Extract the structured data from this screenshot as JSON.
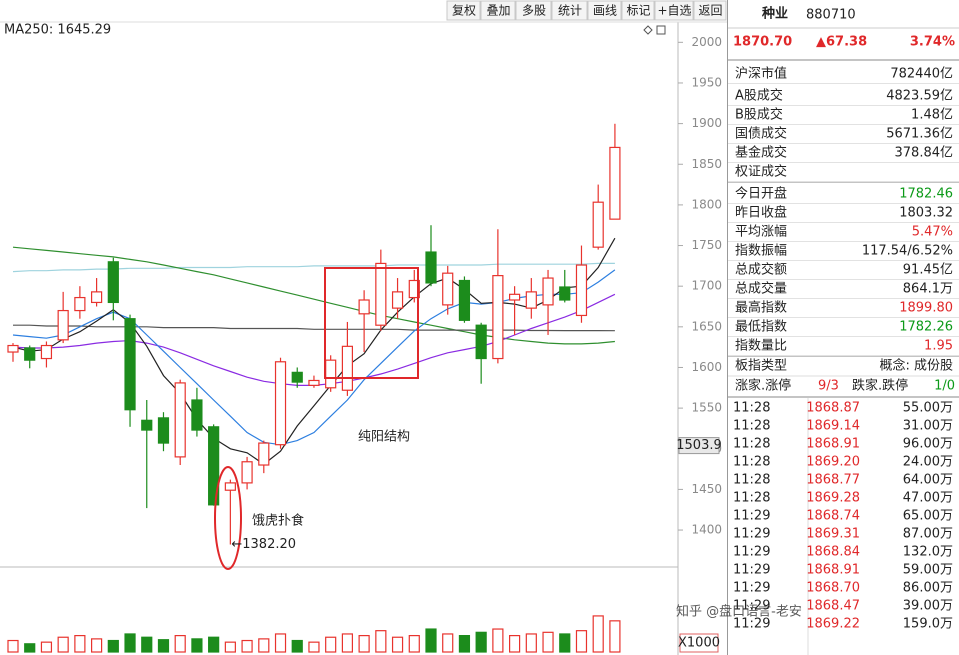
{
  "toolbar": [
    "复权",
    "叠加",
    "多股",
    "统计",
    "画线",
    "标记",
    "+自选",
    "返回"
  ],
  "chart_data": {
    "type": "candlestick",
    "legend": "MA250: 1645.29",
    "categories": [
      null,
      null,
      null,
      null,
      null,
      null,
      null,
      null,
      null,
      null,
      null,
      null,
      null,
      null,
      null,
      null,
      null,
      null,
      null,
      null,
      null,
      null,
      null,
      null,
      null,
      null,
      null,
      null,
      null,
      null,
      null,
      null,
      null,
      null,
      null,
      null,
      null
    ],
    "open": [
      1619,
      1624,
      1611,
      1634,
      1670,
      1680,
      1730,
      1660,
      1535,
      1538,
      1490,
      1560,
      1527,
      1449,
      1458,
      1480,
      1505,
      1594,
      1578,
      1575,
      1572,
      1666,
      1652,
      1673,
      1686,
      1742,
      1677,
      1707,
      1652,
      1611,
      1683,
      1673,
      1677,
      1699,
      1664,
      1748,
      1782.46
    ],
    "high": [
      1630,
      1627,
      1632,
      1693,
      1700,
      1710,
      1735,
      1665,
      1560,
      1545,
      1585,
      1575,
      1530,
      1462,
      1490,
      1510,
      1612,
      1600,
      1590,
      1615,
      1656,
      1695,
      1745,
      1710,
      1720,
      1775,
      1725,
      1712,
      1655,
      1770,
      1700,
      1710,
      1720,
      1720,
      1750,
      1825,
      1899.8
    ],
    "low": [
      1607,
      1599,
      1600,
      1630,
      1660,
      1675,
      1658,
      1527,
      1427,
      1497,
      1480,
      1515,
      1430,
      1382.2,
      1450,
      1470,
      1500,
      1575,
      1575,
      1570,
      1565,
      1619,
      1645,
      1660,
      1680,
      1700,
      1665,
      1655,
      1580,
      1605,
      1640,
      1660,
      1640,
      1680,
      1655,
      1745,
      1782.26
    ],
    "close": [
      1627,
      1609,
      1627,
      1670,
      1686,
      1693,
      1680,
      1548,
      1523,
      1507,
      1581,
      1523,
      1431,
      1458,
      1484,
      1507,
      1607,
      1582,
      1584,
      1609,
      1626,
      1683,
      1728,
      1693,
      1707,
      1704,
      1716,
      1658,
      1611,
      1713,
      1690,
      1693,
      1710,
      1683,
      1726,
      1803.32,
      1870.7
    ],
    "colors": {
      "up": "#e8332d",
      "down": "#1c8c1c"
    },
    "series": [
      {
        "color": "#9fd3de",
        "values": [
          1718,
          1719,
          1719,
          1720,
          1720,
          1721,
          1721,
          1722,
          1722,
          1722,
          1723,
          1723,
          1723,
          1723,
          1724,
          1724,
          1724,
          1724,
          1725,
          1725,
          1725,
          1725,
          1725,
          1726,
          1726,
          1726,
          1726,
          1726,
          1726,
          1727,
          1727,
          1727,
          1727,
          1727,
          1727,
          1728,
          1728
        ]
      },
      {
        "color": "#2f8f2f",
        "values": [
          1748,
          1746,
          1744,
          1742,
          1740,
          1738,
          1736,
          1733,
          1730,
          1726,
          1722,
          1718,
          1714,
          1709,
          1704,
          1699,
          1694,
          1689,
          1684,
          1679,
          1674,
          1669,
          1664,
          1660,
          1656,
          1652,
          1648,
          1644,
          1640,
          1637,
          1634,
          1632,
          1630,
          1629,
          1629,
          1630,
          1632
        ]
      },
      {
        "color": "#555555",
        "values": [
          1652,
          1652,
          1651,
          1651,
          1651,
          1650,
          1650,
          1650,
          1650,
          1649,
          1649,
          1649,
          1649,
          1648,
          1648,
          1648,
          1648,
          1648,
          1647,
          1647,
          1647,
          1647,
          1647,
          1647,
          1646,
          1646,
          1646,
          1646,
          1646,
          1646,
          1646,
          1645.5,
          1645.5,
          1645.4,
          1645.4,
          1645.3,
          1645.29
        ]
      },
      {
        "color": "#8a2be2",
        "values": [
          1625,
          1624,
          1624,
          1625,
          1627,
          1630,
          1632,
          1633,
          1630,
          1625,
          1618,
          1610,
          1602,
          1595,
          1588,
          1583,
          1580,
          1578,
          1578,
          1580,
          1583,
          1587,
          1592,
          1598,
          1605,
          1612,
          1618,
          1622,
          1626,
          1632,
          1640,
          1648,
          1655,
          1662,
          1670,
          1680,
          1690
        ]
      },
      {
        "color": "#2d7fe0",
        "values": [
          1640,
          1638,
          1636,
          1640,
          1650,
          1660,
          1668,
          1660,
          1640,
          1620,
          1600,
          1580,
          1560,
          1540,
          1520,
          1508,
          1505,
          1510,
          1520,
          1540,
          1560,
          1585,
          1605,
          1625,
          1645,
          1660,
          1672,
          1680,
          1678,
          1680,
          1685,
          1688,
          1690,
          1690,
          1692,
          1705,
          1720
        ]
      },
      {
        "color": "#222222",
        "values": [
          1625,
          1620,
          1622,
          1635,
          1644,
          1657,
          1671,
          1655,
          1626,
          1590,
          1568,
          1536,
          1513,
          1500,
          1495,
          1481,
          1497,
          1528,
          1553,
          1578,
          1602,
          1617,
          1646,
          1668,
          1687,
          1703,
          1710,
          1696,
          1679,
          1680,
          1678,
          1673,
          1683,
          1698,
          1700,
          1723,
          1759
        ]
      }
    ],
    "ylim": [
      1357,
      2025
    ],
    "yticks": [
      1400,
      1450,
      1500,
      1550,
      1600,
      1650,
      1700,
      1750,
      1800,
      1850,
      1900,
      1950,
      2000
    ],
    "grid": false,
    "cursor_value": 1503.9,
    "low_marker": {
      "value": 1382.2,
      "label": "←1382.20"
    },
    "annotations": [
      "纯阳结构",
      "饿虎扑食"
    ],
    "volume": {
      "values": [
        14,
        10,
        12,
        18,
        20,
        16,
        14,
        22,
        18,
        15,
        20,
        16,
        18,
        12,
        14,
        16,
        22,
        14,
        12,
        18,
        22,
        20,
        26,
        18,
        20,
        28,
        22,
        20,
        24,
        28,
        20,
        22,
        24,
        22,
        26,
        44,
        38
      ],
      "ylim": [
        0,
        100
      ],
      "unit_label": "X1000"
    }
  },
  "quote": {
    "name": "种业",
    "code": "880710",
    "price": "1870.70",
    "change": "▲67.38",
    "percent": "3.74%"
  },
  "stats": [
    {
      "label": "沪深市值",
      "value": "782440亿"
    },
    {
      "label": "A股成交",
      "value": "4823.59亿"
    },
    {
      "label": "B股成交",
      "value": "1.48亿"
    },
    {
      "label": "国债成交",
      "value": "5671.36亿"
    },
    {
      "label": "基金成交",
      "value": "378.84亿"
    },
    {
      "label": "权证成交",
      "value": ""
    },
    {
      "label": "今日开盘",
      "value": "1782.46",
      "color": "green"
    },
    {
      "label": "昨日收盘",
      "value": "1803.32"
    },
    {
      "label": "平均涨幅",
      "value": "5.47%",
      "color": "red"
    },
    {
      "label": "指数振幅",
      "value": "117.54/6.52%"
    },
    {
      "label": "总成交额",
      "value": "91.45亿"
    },
    {
      "label": "总成交量",
      "value": "864.1万"
    },
    {
      "label": "最高指数",
      "value": "1899.80",
      "color": "red"
    },
    {
      "label": "最低指数",
      "value": "1782.26",
      "color": "green"
    },
    {
      "label": "指数量比",
      "value": "1.95",
      "color": "red"
    }
  ],
  "board": {
    "label": "板指类型",
    "value": "概念: 成份股"
  },
  "breadth": {
    "up_label": "涨家.涨停",
    "up_value": "9/3",
    "down_label": "跌家.跌停",
    "down_value": "1/0"
  },
  "trades": [
    [
      "11:28",
      "1868.87",
      "55.00万"
    ],
    [
      "11:28",
      "1869.14",
      "31.00万"
    ],
    [
      "11:28",
      "1868.91",
      "96.00万"
    ],
    [
      "11:28",
      "1869.20",
      "24.00万"
    ],
    [
      "11:28",
      "1868.77",
      "64.00万"
    ],
    [
      "11:28",
      "1869.28",
      "47.00万"
    ],
    [
      "11:29",
      "1868.74",
      "65.00万"
    ],
    [
      "11:29",
      "1869.31",
      "87.00万"
    ],
    [
      "11:29",
      "1868.84",
      "132.0万"
    ],
    [
      "11:29",
      "1868.91",
      "59.00万"
    ],
    [
      "11:29",
      "1868.70",
      "86.00万"
    ],
    [
      "11:29",
      "1868.47",
      "39.00万"
    ],
    [
      "11:29",
      "1869.22",
      "159.0万"
    ]
  ],
  "watermark": "知乎 @盘口语言-老安"
}
